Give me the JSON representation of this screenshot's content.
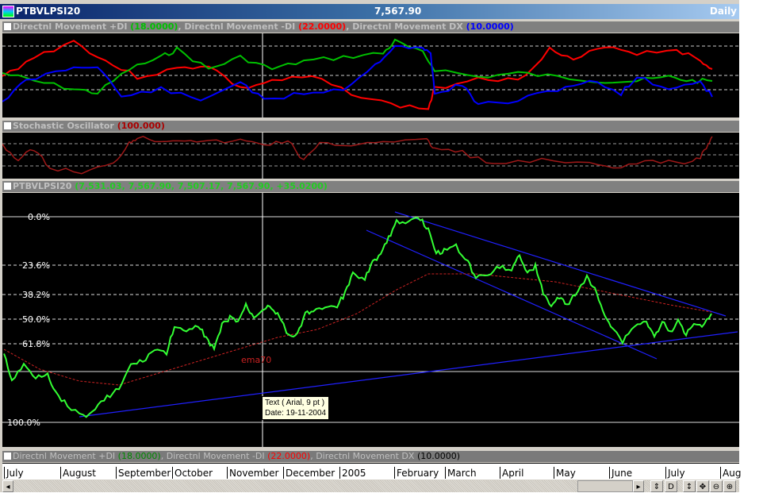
{
  "window": {
    "symbol": "PTBVLPSI20",
    "price": "7,567.90",
    "period": "Daily"
  },
  "dmi_panel": {
    "label_plus": "Directnl Movement +DI",
    "val_plus": "(18.0000)",
    "label_minus": ", Directnl Movement -DI",
    "val_minus": "(22.0000)",
    "label_dx": ", Directnl Movement DX",
    "val_dx": "(10.0000)"
  },
  "stoch_panel": {
    "label": "Stochastic Oscillator",
    "value": "(100.000)"
  },
  "price_panel": {
    "label": "PTBVLPSI20",
    "values": "(7,531.03, 7,567.90, 7,507.17, 7,567.90, +35.0200)",
    "ema_label": "ema70",
    "fib_levels": [
      "0.0%",
      "23.6%",
      "38.2%",
      "50.0%",
      "61.8%",
      "100.0%"
    ],
    "tooltip_line1": "Text ( Arial, 9 pt )",
    "tooltip_line2": "Date: 19-11-2004"
  },
  "bottom_panel": {
    "label_plus": "Directnl Movement +DI",
    "val_plus": "(18.0000)",
    "label_minus": ", Directnl Movement -DI",
    "val_minus": "(22.0000)",
    "label_dx": ", Directnl Movement DX",
    "val_dx": "(10.0000)"
  },
  "x_axis": [
    "July",
    "August",
    "September",
    "October",
    "November",
    "December",
    "2005",
    "February",
    "March",
    "April",
    "May",
    "June",
    "July",
    "Aug"
  ],
  "toolbar": {
    "left": "◂",
    "right": "▸",
    "b1": "⇕",
    "b2": "D",
    "b3": "↕",
    "b4": "✥",
    "b5": "⊖",
    "b6": "⊕"
  },
  "colors": {
    "plus_di": "#00c000",
    "minus_di": "#ff0000",
    "dx": "#0000ff",
    "price": "#33ff33",
    "ema": "#cc2222",
    "stoch": "#a01818"
  }
}
